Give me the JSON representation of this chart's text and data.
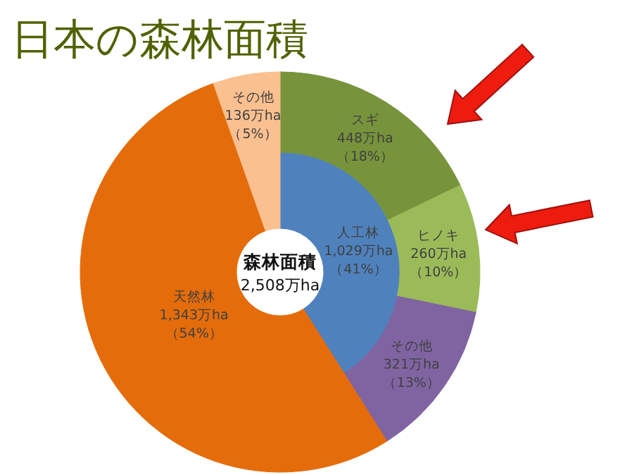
{
  "chart_data": {
    "type": "donut",
    "title": "日本の森林面積",
    "annotations": [
      "森林面積\n2,508万ha"
    ],
    "series": [
      {
        "values": [
          1029,
          1343,
          136
        ],
        "colors": [
          "#4f81bd",
          "#e46c0a",
          "#fac090"
        ],
        "value_labels": [
          "人工林\n1,029万ha\n（41%）",
          "天然林\n1,343万ha\n（54%）",
          null
        ]
      },
      {
        "values": [
          448,
          260,
          321,
          1343,
          136
        ],
        "colors": [
          "#77933c",
          "#9bbb59",
          "#8064a2",
          "#e46c0a",
          "#fac090"
        ],
        "value_labels": [
          "スギ\n448万ha\n（18%）",
          "ヒノキ\n260万ha\n（10%）",
          "その他\n321万ha\n（13%）",
          null,
          "その他\n136万ha\n（5%）"
        ]
      }
    ]
  }
}
